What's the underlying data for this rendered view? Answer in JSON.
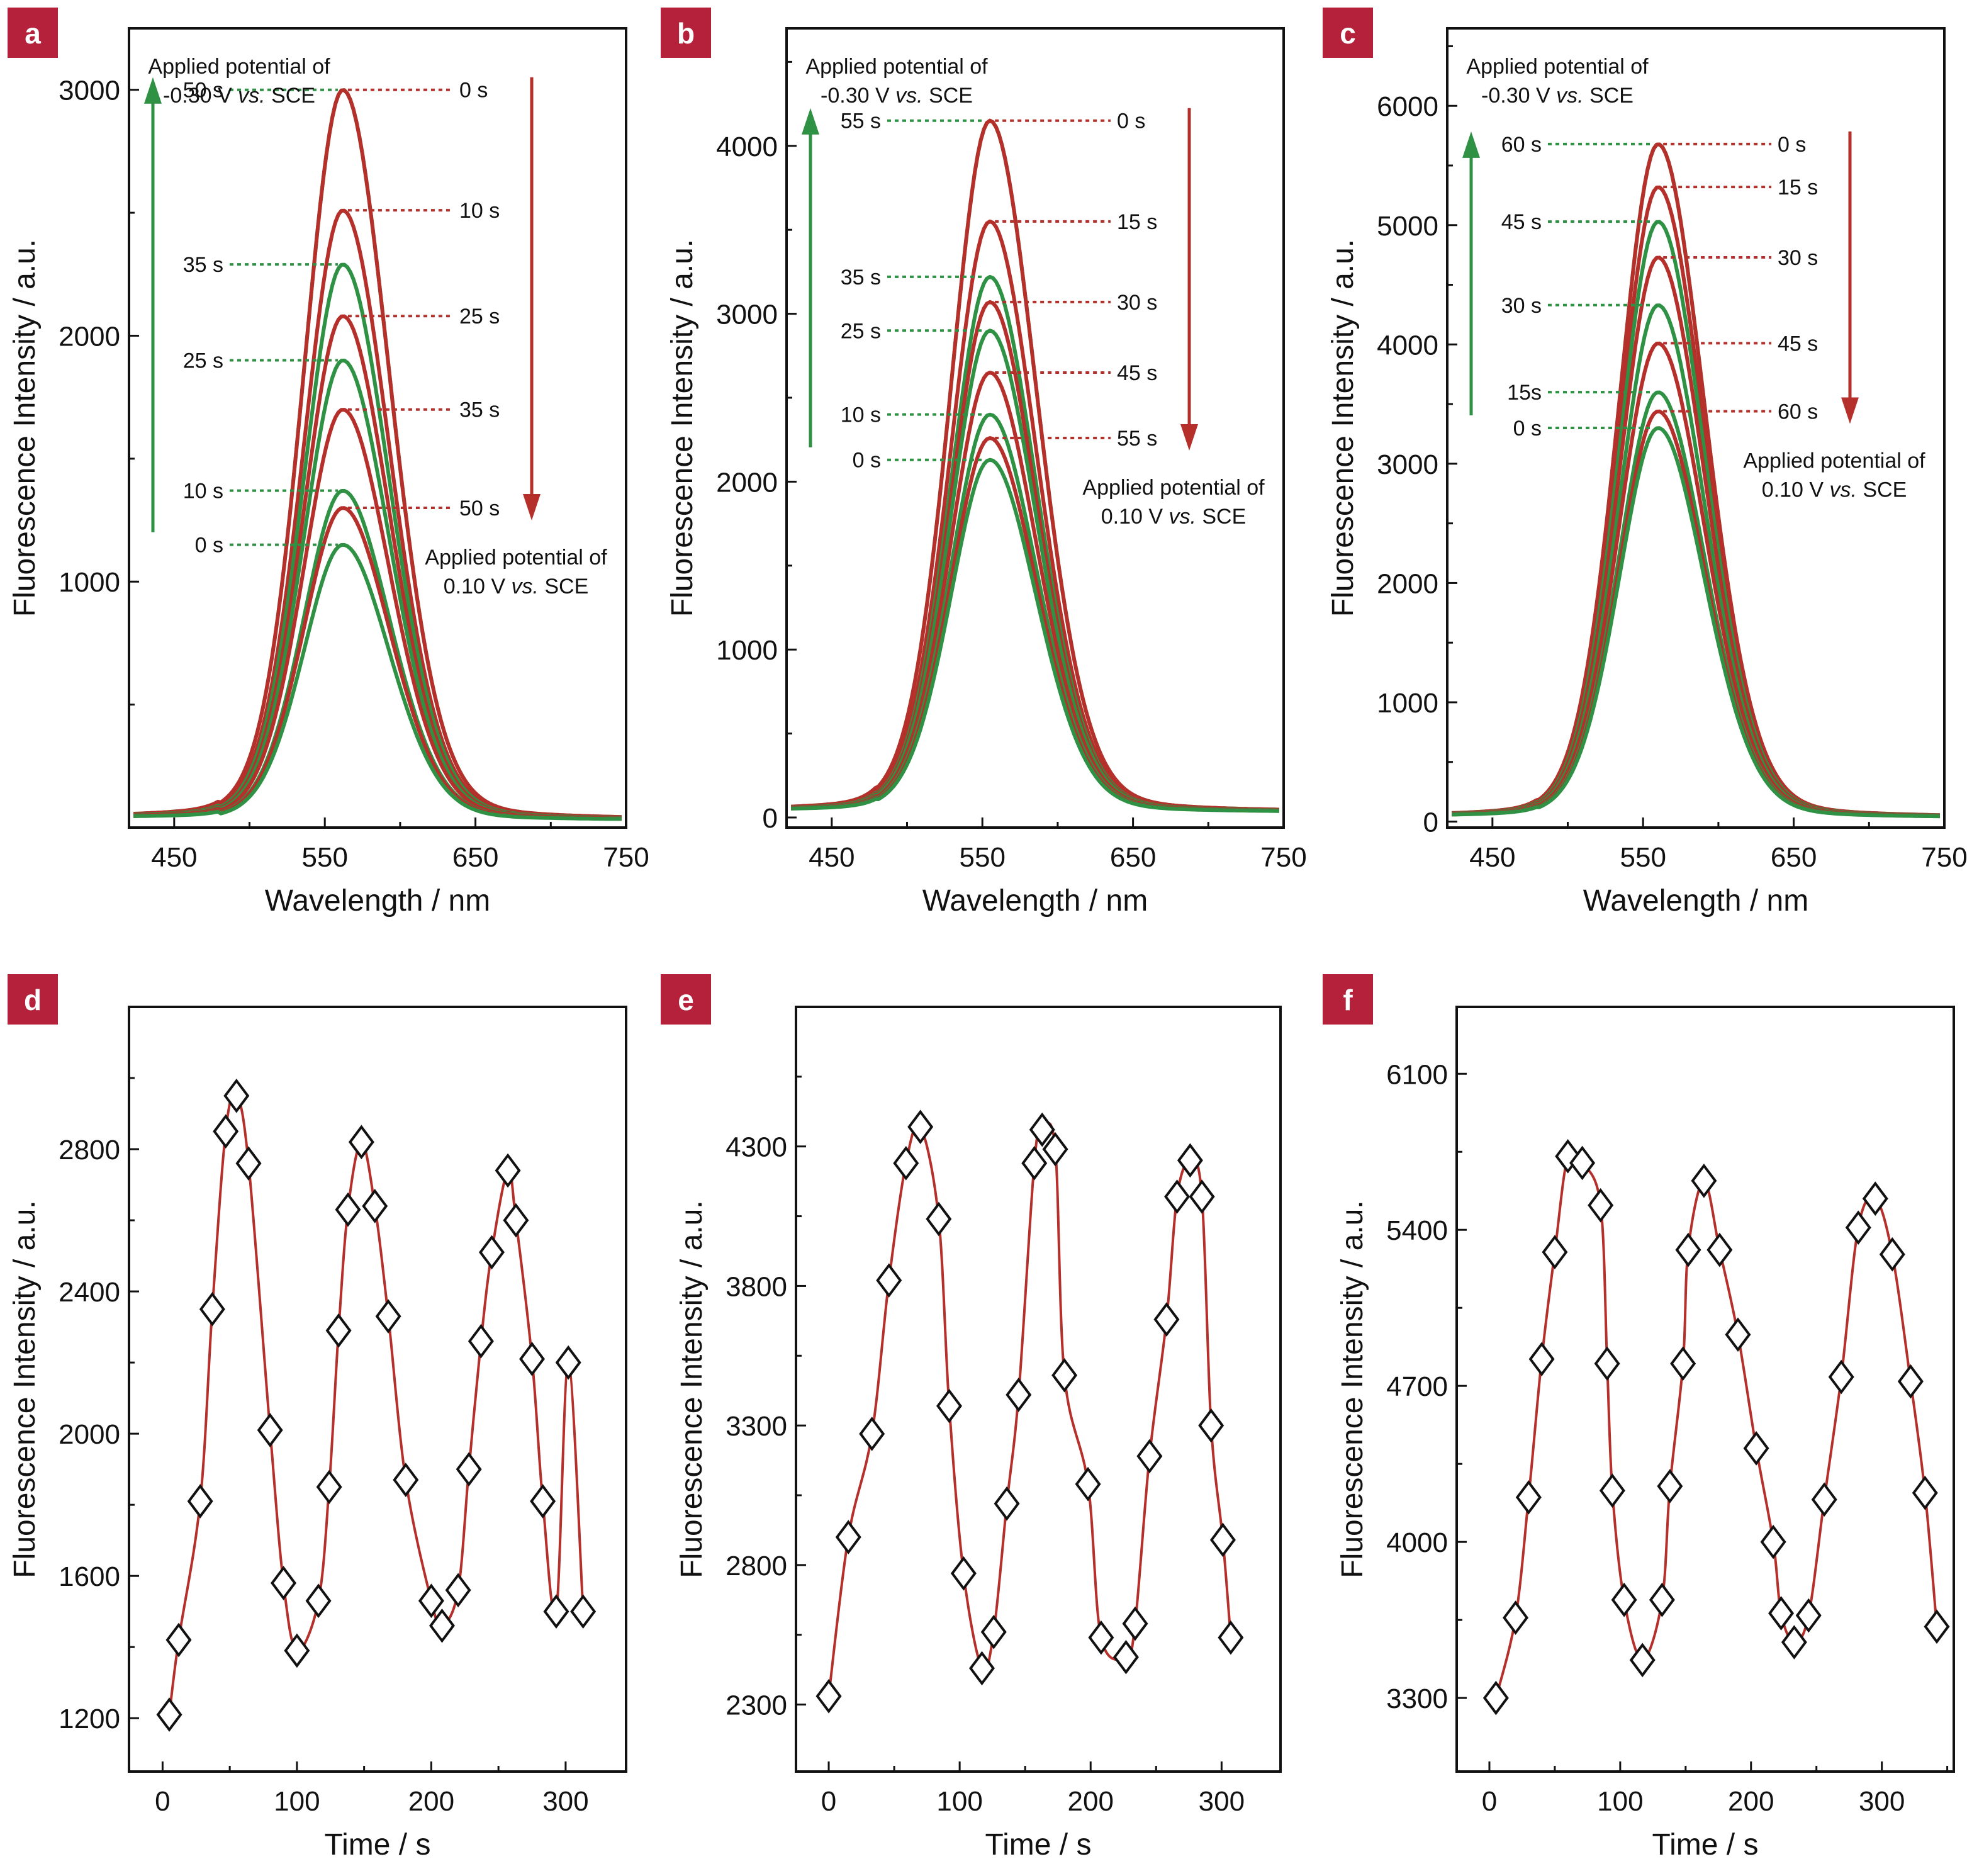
{
  "colors": {
    "green": "#2e9144",
    "red": "#b5302b",
    "badge": "#b5203a",
    "fit_line": "#b5302b",
    "axis": "#111111"
  },
  "chart_data": [
    {
      "id": "a",
      "type": "line",
      "title": "",
      "xlabel": "Wavelength / nm",
      "ylabel": "Fluorescence Intensity / a.u.",
      "xlim": [
        420,
        750
      ],
      "ylim": [
        0,
        3250
      ],
      "xticks": [
        450,
        550,
        650,
        750
      ],
      "yticks": [
        1000,
        2000,
        3000
      ],
      "peak_nm": 562,
      "green_series": [
        {
          "name": "0 s",
          "values_peak": 1150
        },
        {
          "name": "10 s",
          "values_peak": 1370
        },
        {
          "name": "25 s",
          "values_peak": 1900
        },
        {
          "name": "35 s",
          "values_peak": 2290
        },
        {
          "name": "50 s",
          "values_peak": 3000
        }
      ],
      "red_series": [
        {
          "name": "0 s",
          "values_peak": 3000
        },
        {
          "name": "10 s",
          "values_peak": 2510
        },
        {
          "name": "25 s",
          "values_peak": 2080
        },
        {
          "name": "35 s",
          "values_peak": 1700
        },
        {
          "name": "50 s",
          "values_peak": 1300
        }
      ],
      "annotations": {
        "green_line1": "Applied potential of",
        "green_line2_value": "-0.30 V",
        "green_line2_vs": "vs.",
        "green_line2_ref": "SCE",
        "red_line1": "Applied potential of",
        "red_line2_value": "0.10 V",
        "red_line2_vs": "vs.",
        "red_line2_ref": "SCE"
      }
    },
    {
      "id": "b",
      "type": "line",
      "title": "",
      "xlabel": "Wavelength / nm",
      "ylabel": "Fluorescence Intensity / a.u.",
      "xlim": [
        420,
        750
      ],
      "ylim": [
        -60,
        4700
      ],
      "xticks": [
        450,
        550,
        650,
        750
      ],
      "yticks": [
        0,
        1000,
        2000,
        3000,
        4000
      ],
      "peak_nm": 555,
      "green_series": [
        {
          "name": "0 s",
          "values_peak": 2130
        },
        {
          "name": "10 s",
          "values_peak": 2400
        },
        {
          "name": "25 s",
          "values_peak": 2900
        },
        {
          "name": "35 s",
          "values_peak": 3220
        },
        {
          "name": "55 s",
          "values_peak": 4150
        }
      ],
      "red_series": [
        {
          "name": "0 s",
          "values_peak": 4150
        },
        {
          "name": "15 s",
          "values_peak": 3550
        },
        {
          "name": "30 s",
          "values_peak": 3070
        },
        {
          "name": "45 s",
          "values_peak": 2650
        },
        {
          "name": "55 s",
          "values_peak": 2260
        }
      ],
      "annotations": {
        "green_line1": "Applied potential of",
        "green_line2_value": "-0.30 V",
        "green_line2_vs": "vs.",
        "green_line2_ref": "SCE",
        "red_line1": "Applied potential of",
        "red_line2_value": "0.10 V",
        "red_line2_vs": "vs.",
        "red_line2_ref": "SCE"
      }
    },
    {
      "id": "c",
      "type": "line",
      "title": "",
      "xlabel": "Wavelength / nm",
      "ylabel": "Fluorescence Intensity / a.u.",
      "xlim": [
        420,
        750
      ],
      "ylim": [
        -50,
        6650
      ],
      "xticks": [
        450,
        550,
        650,
        750
      ],
      "yticks": [
        0,
        1000,
        2000,
        3000,
        4000,
        5000,
        6000
      ],
      "peak_nm": 560,
      "green_series": [
        {
          "name": "0 s",
          "values_peak": 3300
        },
        {
          "name": "15s",
          "values_peak": 3600
        },
        {
          "name": "30 s",
          "values_peak": 4330
        },
        {
          "name": "45 s",
          "values_peak": 5030
        },
        {
          "name": "60 s",
          "values_peak": 5680
        }
      ],
      "red_series": [
        {
          "name": "0 s",
          "values_peak": 5680
        },
        {
          "name": "15 s",
          "values_peak": 5320
        },
        {
          "name": "30 s",
          "values_peak": 4730
        },
        {
          "name": "45 s",
          "values_peak": 4010
        },
        {
          "name": "60 s",
          "values_peak": 3440
        }
      ],
      "annotations": {
        "green_line1": "Applied potential of",
        "green_line2_value": "-0.30 V",
        "green_line2_vs": "vs.",
        "green_line2_ref": "SCE",
        "red_line1": "Applied potential of",
        "red_line2_value": "0.10 V",
        "red_line2_vs": "vs.",
        "red_line2_ref": "SCE"
      }
    },
    {
      "id": "d",
      "type": "scatter",
      "title": "",
      "xlabel": "Time / s",
      "ylabel": "Fluorescence Intensity / a.u.",
      "xlim": [
        -25,
        345
      ],
      "ylim": [
        1050,
        3200
      ],
      "xticks": [
        0,
        100,
        200,
        300
      ],
      "yticks": [
        1200,
        1600,
        2000,
        2400,
        2800
      ],
      "x": [
        5,
        12,
        28,
        37,
        47,
        55,
        64,
        80,
        90,
        100,
        116,
        124,
        131,
        138,
        148,
        158,
        168,
        181,
        200,
        208,
        220,
        228,
        237,
        245,
        257,
        263,
        275,
        283,
        293,
        302,
        313
      ],
      "y": [
        1210,
        1420,
        1810,
        2350,
        2850,
        2950,
        2760,
        2010,
        1580,
        1390,
        1530,
        1850,
        2290,
        2630,
        2820,
        2640,
        2330,
        1870,
        1530,
        1460,
        1560,
        1900,
        2260,
        2510,
        2740,
        2600,
        2210,
        1810,
        1500,
        2200,
        1500
      ]
    },
    {
      "id": "e",
      "type": "scatter",
      "title": "",
      "xlabel": "Time / s",
      "ylabel": "Fluorescence Intensity / a.u.",
      "xlim": [
        -25,
        345
      ],
      "ylim": [
        2060,
        4800
      ],
      "xticks": [
        0,
        100,
        200,
        300
      ],
      "yticks": [
        2300,
        2800,
        3300,
        3800,
        4300
      ],
      "x": [
        0,
        15,
        33,
        46,
        59,
        70,
        84,
        92,
        103,
        117,
        126,
        136,
        145,
        157,
        163,
        173,
        180,
        198,
        208,
        227,
        234,
        245,
        258,
        266,
        276,
        285,
        292,
        301,
        307
      ],
      "y": [
        2330,
        2900,
        3270,
        3820,
        4240,
        4370,
        4040,
        3370,
        2770,
        2430,
        2560,
        3020,
        3410,
        4240,
        4360,
        4290,
        3480,
        3090,
        2540,
        2470,
        2590,
        3190,
        3680,
        4120,
        4250,
        4120,
        3300,
        2890,
        2540
      ]
    },
    {
      "id": "f",
      "type": "scatter",
      "title": "",
      "xlabel": "Time / s",
      "ylabel": "Fluorescence Intensity / a.u.",
      "xlim": [
        -25,
        355
      ],
      "ylim": [
        2970,
        6400
      ],
      "xticks": [
        0,
        100,
        200,
        300
      ],
      "yticks": [
        3300,
        4000,
        4700,
        5400,
        6100
      ],
      "x": [
        5,
        20,
        30,
        40,
        50,
        60,
        71,
        85,
        90,
        94,
        103,
        117,
        132,
        138,
        148,
        152,
        164,
        176,
        190,
        204,
        217,
        223,
        233,
        244,
        256,
        269,
        282,
        295,
        308,
        322,
        333,
        342
      ],
      "y": [
        3300,
        3660,
        4200,
        4820,
        5300,
        5730,
        5700,
        5510,
        4800,
        4230,
        3740,
        3470,
        3740,
        4250,
        4800,
        5310,
        5620,
        5310,
        4930,
        4420,
        4000,
        3680,
        3550,
        3670,
        4190,
        4740,
        5410,
        5540,
        5290,
        4720,
        4220,
        3620
      ]
    }
  ]
}
